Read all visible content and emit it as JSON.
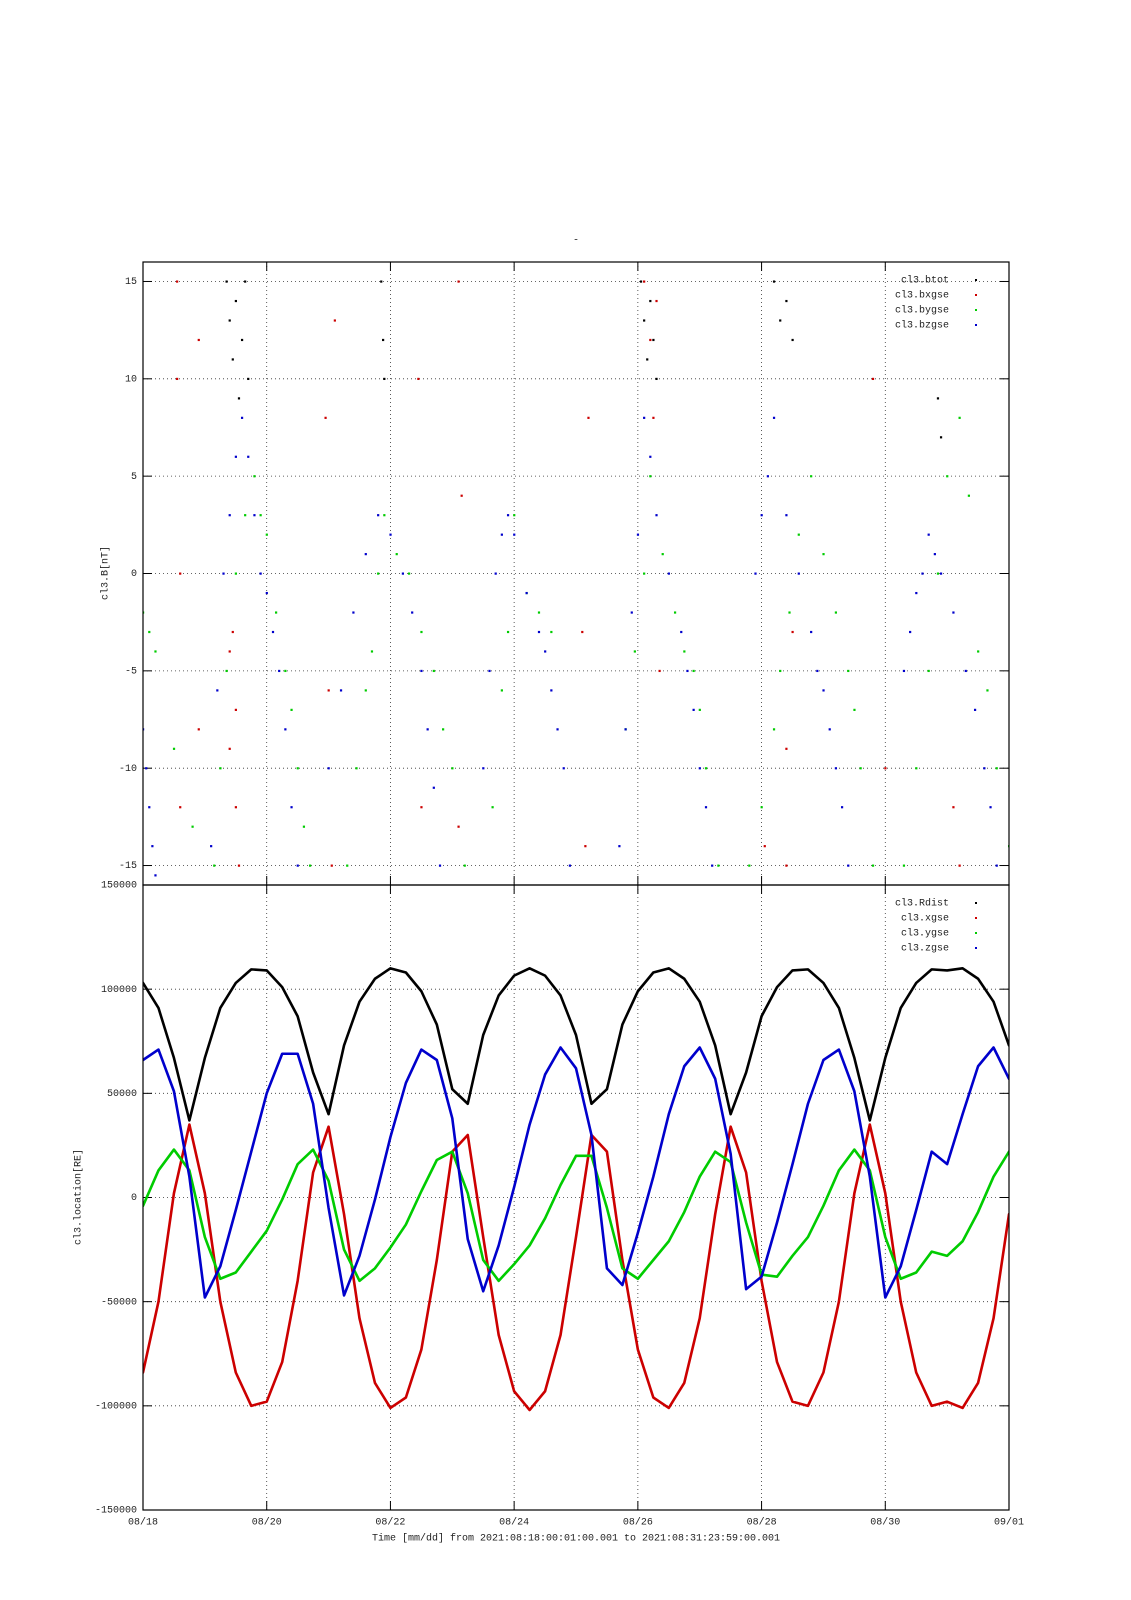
{
  "chart_data": [
    {
      "type": "scatter",
      "title": "-",
      "ylabel": "cl3.B[nT]",
      "xlim": [
        0,
        14
      ],
      "ylim": [
        -16,
        16
      ],
      "yticks": [
        -15,
        -10,
        -5,
        0,
        5,
        10,
        15
      ],
      "grid": true,
      "legend": "upper right",
      "series": [
        {
          "name": "cl3.btot",
          "color": "#000000",
          "x": [
            1.35,
            1.4,
            1.45,
            1.5,
            1.55,
            1.6,
            1.65,
            1.7,
            3.85,
            3.88,
            3.9,
            8.05,
            8.1,
            8.15,
            8.2,
            8.25,
            8.3,
            10.2,
            10.3,
            10.4,
            10.5,
            12.85,
            12.9
          ],
          "values": [
            15,
            13,
            11,
            14,
            9,
            12,
            15,
            10,
            15,
            12,
            10,
            15,
            13,
            11,
            14,
            12,
            10,
            15,
            13,
            14,
            12,
            9,
            7
          ]
        },
        {
          "name": "cl3.bxgse",
          "color": "#cc0000",
          "x": [
            0.55,
            0.55,
            0.6,
            0.6,
            0.9,
            0.9,
            1.4,
            1.4,
            1.45,
            1.5,
            1.5,
            1.55,
            2.95,
            3.05,
            3.1,
            5.1,
            5.1,
            5.15,
            3.0,
            4.45,
            4.5,
            7.1,
            7.15,
            7.2,
            8.1,
            8.2,
            8.25,
            8.3,
            8.35,
            10.05,
            10.4,
            10.4,
            10.5,
            11.8,
            12.0,
            13.1,
            13.2
          ],
          "values": [
            15,
            10,
            0,
            -12,
            12,
            -8,
            -4,
            -9,
            -3,
            -12,
            -7,
            -15,
            8,
            -15,
            13,
            15,
            -13,
            4,
            -6,
            10,
            -12,
            -3,
            -14,
            8,
            15,
            12,
            8,
            14,
            -5,
            -14,
            -9,
            -15,
            -3,
            10,
            -10,
            -12,
            -15
          ]
        },
        {
          "name": "cl3.bygse",
          "color": "#00cc00",
          "x": [
            0,
            0.1,
            0.2,
            0.5,
            0.8,
            1.15,
            1.25,
            1.35,
            1.5,
            1.65,
            1.8,
            1.9,
            2.0,
            2.15,
            2.3,
            2.4,
            2.5,
            2.6,
            2.7,
            3.3,
            3.45,
            3.6,
            3.7,
            3.8,
            3.9,
            4.1,
            4.3,
            4.5,
            4.7,
            4.85,
            5.0,
            5.2,
            5.65,
            5.8,
            5.9,
            6.0,
            6.2,
            6.4,
            6.6,
            7.8,
            7.95,
            8.1,
            8.2,
            8.4,
            8.6,
            8.75,
            8.9,
            9.0,
            9.1,
            9.3,
            9.8,
            10.0,
            10.2,
            10.3,
            10.45,
            10.6,
            10.8,
            11.0,
            11.2,
            11.4,
            11.5,
            11.6,
            11.8,
            12.3,
            12.5,
            12.7,
            12.85,
            13.0,
            13.2,
            13.35,
            13.5,
            13.65,
            13.8,
            14.0
          ],
          "values": [
            -2,
            -3,
            -4,
            -9,
            -13,
            -15,
            -10,
            -5,
            0,
            3,
            5,
            3,
            2,
            -2,
            -5,
            -7,
            -10,
            -13,
            -15,
            -15,
            -10,
            -6,
            -4,
            0,
            3,
            1,
            0,
            -3,
            -5,
            -8,
            -10,
            -15,
            -12,
            -6,
            -3,
            3,
            -1,
            -2,
            -3,
            -8,
            -4,
            0,
            5,
            1,
            -2,
            -4,
            -5,
            -7,
            -10,
            -15,
            -15,
            -12,
            -8,
            -5,
            -2,
            2,
            5,
            1,
            -2,
            -5,
            -7,
            -10,
            -15,
            -15,
            -10,
            -5,
            0,
            5,
            8,
            4,
            -4,
            -6,
            -10,
            -14
          ]
        },
        {
          "name": "cl3.bzgse",
          "color": "#0000cc",
          "x": [
            0,
            0.05,
            0.1,
            0.15,
            0.2,
            1.1,
            1.2,
            1.3,
            1.4,
            1.5,
            1.6,
            1.7,
            1.8,
            1.9,
            2.0,
            2.1,
            2.2,
            2.3,
            2.4,
            2.5,
            3.0,
            3.2,
            3.4,
            3.6,
            3.8,
            4.0,
            4.2,
            4.35,
            4.5,
            4.6,
            4.7,
            4.8,
            5.5,
            5.6,
            5.7,
            5.8,
            5.9,
            6.0,
            6.2,
            6.4,
            6.5,
            6.6,
            6.7,
            6.8,
            6.9,
            7.7,
            7.8,
            7.9,
            8.0,
            8.1,
            8.2,
            8.3,
            8.5,
            8.7,
            8.8,
            8.9,
            9.0,
            9.1,
            9.2,
            9.9,
            10.0,
            10.1,
            10.2,
            10.4,
            10.6,
            10.8,
            10.9,
            11.0,
            11.1,
            11.2,
            11.3,
            11.4,
            12.3,
            12.4,
            12.5,
            12.6,
            12.7,
            12.8,
            12.9,
            13.1,
            13.3,
            13.45,
            13.6,
            13.7,
            13.8
          ],
          "values": [
            -8,
            -10,
            -12,
            -14,
            -15.5,
            -14,
            -6,
            0,
            3,
            6,
            8,
            6,
            3,
            0,
            -1,
            -3,
            -5,
            -8,
            -12,
            -15,
            -10,
            -6,
            -2,
            1,
            3,
            2,
            0,
            -2,
            -5,
            -8,
            -11,
            -15,
            -10,
            -5,
            0,
            2,
            3,
            2,
            -1,
            -3,
            -4,
            -6,
            -8,
            -10,
            -15,
            -14,
            -8,
            -2,
            2,
            8,
            6,
            3,
            0,
            -3,
            -5,
            -7,
            -10,
            -12,
            -15,
            0,
            3,
            5,
            8,
            3,
            0,
            -3,
            -5,
            -6,
            -8,
            -10,
            -12,
            -15,
            -5,
            -3,
            -1,
            0,
            2,
            1,
            0,
            -2,
            -5,
            -7,
            -10,
            -12,
            -15
          ]
        }
      ]
    },
    {
      "type": "line",
      "ylabel": "cl3.location[RE]",
      "xlabel": "Time [mm/dd]  from 2021:08:18:00:01:00.001  to  2021:08:31:23:59:00.001",
      "xlim": [
        0,
        14
      ],
      "xticks": [
        {
          "value": 0,
          "label": "08/18"
        },
        {
          "value": 2,
          "label": "08/20"
        },
        {
          "value": 4,
          "label": "08/22"
        },
        {
          "value": 6,
          "label": "08/24"
        },
        {
          "value": 8,
          "label": "08/26"
        },
        {
          "value": 10,
          "label": "08/28"
        },
        {
          "value": 12,
          "label": "08/30"
        },
        {
          "value": 14,
          "label": "09/01"
        }
      ],
      "ylim": [
        -150000,
        150000
      ],
      "yticks": [
        -150000,
        -100000,
        -50000,
        0,
        50000,
        100000,
        150000
      ],
      "grid": true,
      "legend": "upper right",
      "x": [
        0,
        0.25,
        0.5,
        0.75,
        1,
        1.25,
        1.5,
        1.75,
        2,
        2.25,
        2.5,
        2.75,
        3,
        3.25,
        3.5,
        3.75,
        4,
        4.25,
        4.5,
        4.75,
        5,
        5.25,
        5.5,
        5.75,
        6,
        6.25,
        6.5,
        6.75,
        7,
        7.25,
        7.5,
        7.75,
        8,
        8.25,
        8.5,
        8.75,
        9,
        9.25,
        9.5,
        9.75,
        10,
        10.25,
        10.5,
        10.75,
        11,
        11.25,
        11.5,
        11.75,
        12,
        12.25,
        12.5,
        12.75,
        13,
        13.25,
        13.5,
        13.75,
        14
      ],
      "series": [
        {
          "name": "cl3.Rdist",
          "color": "#000000",
          "values": [
            103000,
            91000,
            67000,
            37000,
            67000,
            91000,
            103000,
            109500,
            109000,
            101000,
            87000,
            60000,
            40000,
            73000,
            94000,
            105000,
            110000,
            108000,
            99000,
            83000,
            52000,
            45000,
            78000,
            97000,
            106500,
            110000,
            106500,
            97000,
            78000,
            45000,
            52000,
            83000,
            99000,
            108000,
            110000,
            105000,
            94000,
            73000,
            40000,
            60000,
            87000,
            101000,
            109000,
            109500,
            103000,
            91000,
            67000,
            37000,
            67000,
            91000,
            103000,
            109500,
            109000,
            110000,
            105000,
            94000,
            73000
          ]
        },
        {
          "name": "cl3.xgse",
          "color": "#cc0000",
          "values": [
            -84000,
            -50000,
            2000,
            35000,
            2000,
            -50000,
            -84000,
            -100000,
            -98000,
            -79000,
            -40000,
            12000,
            34000,
            -8000,
            -58000,
            -89000,
            -101000,
            -96000,
            -73000,
            -30000,
            22000,
            30000,
            -19000,
            -66000,
            -93000,
            -102000,
            -93000,
            -66000,
            -19000,
            30000,
            22000,
            -30000,
            -73000,
            -96000,
            -101000,
            -89000,
            -58000,
            -8000,
            34000,
            12000,
            -40000,
            -79000,
            -98000,
            -100000,
            -84000,
            -50000,
            2000,
            35000,
            2000,
            -50000,
            -84000,
            -100000,
            -98000,
            -101000,
            -89000,
            -58000,
            -8000
          ]
        },
        {
          "name": "cl3.ygse",
          "color": "#00cc00",
          "values": [
            -4000,
            13000,
            23000,
            13000,
            -19000,
            -39000,
            -36000,
            -26000,
            -16000,
            -1000,
            16000,
            23000,
            8000,
            -25000,
            -40000,
            -34000,
            -24000,
            -13000,
            3000,
            18000,
            22000,
            2000,
            -30000,
            -40000,
            -32000,
            -23000,
            -10000,
            6000,
            20000,
            20000,
            -5000,
            -34000,
            -39000,
            -30000,
            -21000,
            -7000,
            10000,
            22000,
            17000,
            -12000,
            -37000,
            -38000,
            -28000,
            -19000,
            -4000,
            13000,
            23000,
            13000,
            -19000,
            -39000,
            -36000,
            -26000,
            -28000,
            -21000,
            -7000,
            10000,
            22000
          ]
        },
        {
          "name": "cl3.zgse",
          "color": "#0000cc",
          "values": [
            66000,
            71000,
            51000,
            10000,
            -48000,
            -33000,
            -6000,
            22000,
            50000,
            69000,
            69000,
            45000,
            -5000,
            -47000,
            -28000,
            -1000,
            29000,
            55000,
            71000,
            66000,
            38000,
            -20000,
            -45000,
            -23000,
            5000,
            35000,
            59000,
            72000,
            62000,
            30000,
            -34000,
            -42000,
            -17000,
            10000,
            40000,
            63000,
            72000,
            57000,
            21000,
            -44000,
            -38000,
            -12000,
            16000,
            45000,
            66000,
            71000,
            51000,
            10000,
            -48000,
            -33000,
            -6000,
            22000,
            16000,
            40000,
            63000,
            72000,
            57000
          ]
        }
      ]
    }
  ]
}
